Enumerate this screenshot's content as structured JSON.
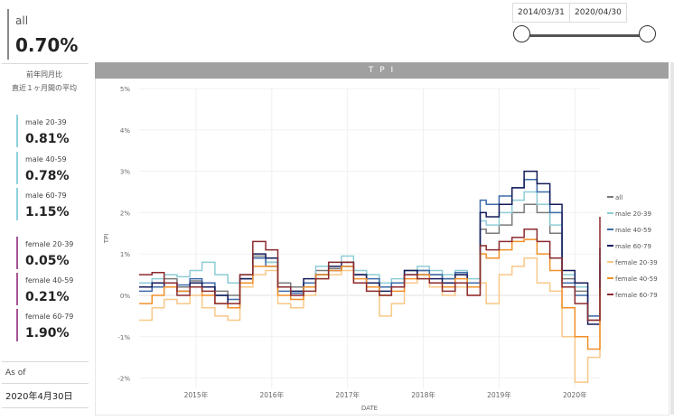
{
  "summary": {
    "label": "all",
    "value": "0.70%"
  },
  "notes": {
    "line1": "前年同月比",
    "line2": "直近１ヶ月間の平均"
  },
  "segments": [
    {
      "label": "male 20-39",
      "value": "0.81%",
      "group": "male"
    },
    {
      "label": "male 40-59",
      "value": "0.78%",
      "group": "male"
    },
    {
      "label": "male 60-79",
      "value": "1.15%",
      "group": "male"
    },
    {
      "label": "female 20-39",
      "value": "0.05%",
      "group": "female"
    },
    {
      "label": "female 40-59",
      "value": "0.21%",
      "group": "female"
    },
    {
      "label": "female 60-79",
      "value": "1.90%",
      "group": "female"
    }
  ],
  "as_of": {
    "label": "As of",
    "value": "2020年4月30日"
  },
  "date_range": {
    "start": "2014/03/31",
    "end": "2020/04/30"
  },
  "chart_header": "T P I",
  "chart_data": {
    "type": "line",
    "step": true,
    "xlabel": "DATE",
    "ylabel": "TPI",
    "ylim": [
      -2.25,
      5.0
    ],
    "yticks": [
      -2,
      -1,
      0,
      1,
      2,
      3,
      4,
      5
    ],
    "ytick_labels": [
      "-2%",
      "-1%",
      "0%",
      "1%",
      "2%",
      "3%",
      "4%",
      "5%"
    ],
    "xlim": [
      2014.25,
      2020.33
    ],
    "xticks": [
      2015,
      2016,
      2017,
      2018,
      2019,
      2020
    ],
    "xtick_labels": [
      "2015年",
      "2016年",
      "2017年",
      "2018年",
      "2019年",
      "2020年"
    ],
    "series": [
      {
        "name": "all",
        "color": "#7a7a7a",
        "x": [
          2014.25,
          2014.42,
          2014.58,
          2014.75,
          2014.92,
          2015.08,
          2015.25,
          2015.42,
          2015.58,
          2015.75,
          2015.92,
          2016.08,
          2016.25,
          2016.42,
          2016.58,
          2016.75,
          2016.92,
          2017.08,
          2017.25,
          2017.42,
          2017.58,
          2017.75,
          2017.92,
          2018.08,
          2018.25,
          2018.42,
          2018.58,
          2018.75,
          2018.83,
          2019.0,
          2019.17,
          2019.33,
          2019.5,
          2019.67,
          2019.83,
          2020.0,
          2020.17,
          2020.33
        ],
        "values": [
          0.2,
          0.3,
          0.4,
          0.2,
          0.35,
          0.2,
          0.1,
          0.0,
          0.5,
          0.95,
          0.8,
          0.3,
          0.2,
          0.3,
          0.6,
          0.65,
          0.7,
          0.5,
          0.3,
          0.2,
          0.3,
          0.6,
          0.6,
          0.5,
          0.4,
          0.5,
          0.3,
          1.6,
          1.5,
          1.7,
          2.0,
          2.2,
          2.0,
          1.5,
          0.4,
          0.1,
          -0.6,
          0.7
        ]
      },
      {
        "name": "male 20-39",
        "color": "#8ecdd6",
        "x": [
          2014.25,
          2014.42,
          2014.58,
          2014.75,
          2014.92,
          2015.08,
          2015.25,
          2015.42,
          2015.58,
          2015.75,
          2015.92,
          2016.08,
          2016.25,
          2016.42,
          2016.58,
          2016.75,
          2016.92,
          2017.08,
          2017.25,
          2017.42,
          2017.58,
          2017.75,
          2017.92,
          2018.08,
          2018.25,
          2018.42,
          2018.58,
          2018.75,
          2018.83,
          2019.0,
          2019.17,
          2019.33,
          2019.5,
          2019.67,
          2019.83,
          2020.0,
          2020.17,
          2020.33
        ],
        "values": [
          0.3,
          0.4,
          0.5,
          0.45,
          0.6,
          0.8,
          0.5,
          0.3,
          0.5,
          0.9,
          0.8,
          0.2,
          0.1,
          0.3,
          0.7,
          0.8,
          0.95,
          0.6,
          0.5,
          0.3,
          0.4,
          0.6,
          0.7,
          0.6,
          0.5,
          0.6,
          0.4,
          1.8,
          1.7,
          2.0,
          2.3,
          2.5,
          2.2,
          1.7,
          0.5,
          0.2,
          -0.5,
          0.8
        ]
      },
      {
        "name": "male 40-59",
        "color": "#3d6aa8",
        "x": [
          2014.25,
          2014.42,
          2014.58,
          2014.75,
          2014.92,
          2015.08,
          2015.25,
          2015.42,
          2015.58,
          2015.75,
          2015.92,
          2016.08,
          2016.25,
          2016.42,
          2016.58,
          2016.75,
          2016.92,
          2017.08,
          2017.25,
          2017.42,
          2017.58,
          2017.75,
          2017.92,
          2018.08,
          2018.25,
          2018.42,
          2018.58,
          2018.75,
          2018.83,
          2019.0,
          2019.17,
          2019.33,
          2019.5,
          2019.67,
          2019.83,
          2020.0,
          2020.17,
          2020.33
        ],
        "values": [
          0.1,
          0.2,
          0.3,
          0.25,
          0.4,
          0.3,
          0.0,
          -0.1,
          0.4,
          0.9,
          0.7,
          0.1,
          0.05,
          0.3,
          0.5,
          0.6,
          0.7,
          0.5,
          0.4,
          0.2,
          0.3,
          0.5,
          0.6,
          0.5,
          0.4,
          0.55,
          0.3,
          2.3,
          2.2,
          2.4,
          2.6,
          2.8,
          2.5,
          2.0,
          0.3,
          0.0,
          -0.5,
          0.8
        ]
      },
      {
        "name": "male 60-79",
        "color": "#141c5a",
        "x": [
          2014.25,
          2014.42,
          2014.58,
          2014.75,
          2014.92,
          2015.08,
          2015.25,
          2015.42,
          2015.58,
          2015.75,
          2015.92,
          2016.08,
          2016.25,
          2016.42,
          2016.58,
          2016.75,
          2016.92,
          2017.08,
          2017.25,
          2017.42,
          2017.58,
          2017.75,
          2017.92,
          2018.08,
          2018.25,
          2018.42,
          2018.58,
          2018.75,
          2018.83,
          2019.0,
          2019.17,
          2019.33,
          2019.5,
          2019.67,
          2019.83,
          2020.0,
          2020.17,
          2020.33
        ],
        "values": [
          0.2,
          0.3,
          0.2,
          0.1,
          0.3,
          0.2,
          0.0,
          -0.3,
          0.4,
          1.0,
          0.9,
          0.2,
          0.1,
          0.4,
          0.5,
          0.7,
          0.8,
          0.5,
          0.3,
          0.1,
          0.2,
          0.6,
          0.5,
          0.4,
          0.3,
          0.5,
          0.2,
          2.0,
          1.9,
          2.2,
          2.6,
          3.0,
          2.7,
          2.2,
          0.6,
          0.3,
          -0.7,
          1.15
        ]
      },
      {
        "name": "female 20-39",
        "color": "#f8c888",
        "x": [
          2014.25,
          2014.42,
          2014.58,
          2014.75,
          2014.92,
          2015.08,
          2015.25,
          2015.42,
          2015.58,
          2015.75,
          2015.92,
          2016.08,
          2016.25,
          2016.42,
          2016.58,
          2016.75,
          2016.92,
          2017.08,
          2017.25,
          2017.42,
          2017.58,
          2017.75,
          2017.92,
          2018.08,
          2018.25,
          2018.42,
          2018.58,
          2018.75,
          2018.83,
          2019.0,
          2019.17,
          2019.33,
          2019.5,
          2019.67,
          2019.83,
          2020.0,
          2020.17,
          2020.33
        ],
        "values": [
          -0.6,
          -0.3,
          -0.1,
          -0.2,
          0.0,
          -0.3,
          -0.5,
          -0.6,
          0.2,
          0.5,
          0.6,
          -0.2,
          -0.3,
          0.0,
          0.4,
          0.5,
          0.6,
          0.3,
          0.1,
          -0.5,
          -0.2,
          0.3,
          0.4,
          0.2,
          0.0,
          0.2,
          0.0,
          0.3,
          -0.2,
          0.5,
          0.7,
          0.9,
          0.3,
          0.1,
          -1.0,
          -2.1,
          -1.5,
          0.0
        ]
      },
      {
        "name": "female 40-59",
        "color": "#f0902a",
        "x": [
          2014.25,
          2014.42,
          2014.58,
          2014.75,
          2014.92,
          2015.08,
          2015.25,
          2015.42,
          2015.58,
          2015.75,
          2015.92,
          2016.08,
          2016.25,
          2016.42,
          2016.58,
          2016.75,
          2016.92,
          2017.08,
          2017.25,
          2017.42,
          2017.58,
          2017.75,
          2017.92,
          2018.08,
          2018.25,
          2018.42,
          2018.58,
          2018.75,
          2018.83,
          2019.0,
          2019.17,
          2019.33,
          2019.5,
          2019.67,
          2019.83,
          2020.0,
          2020.17,
          2020.33
        ],
        "values": [
          -0.2,
          0.0,
          0.2,
          0.1,
          0.2,
          0.0,
          -0.2,
          -0.3,
          0.3,
          0.7,
          0.7,
          0.0,
          -0.1,
          0.2,
          0.5,
          0.6,
          0.7,
          0.4,
          0.2,
          0.0,
          0.1,
          0.4,
          0.5,
          0.3,
          0.2,
          0.4,
          0.2,
          1.0,
          0.9,
          1.1,
          1.3,
          1.35,
          1.0,
          0.6,
          -0.3,
          -1.0,
          -1.3,
          0.2
        ]
      },
      {
        "name": "female 60-79",
        "color": "#8b2a2e",
        "x": [
          2014.25,
          2014.42,
          2014.58,
          2014.75,
          2014.92,
          2015.08,
          2015.25,
          2015.42,
          2015.58,
          2015.75,
          2015.92,
          2016.08,
          2016.25,
          2016.42,
          2016.58,
          2016.75,
          2016.92,
          2017.08,
          2017.25,
          2017.42,
          2017.58,
          2017.75,
          2017.92,
          2018.08,
          2018.25,
          2018.42,
          2018.58,
          2018.75,
          2018.83,
          2019.0,
          2019.17,
          2019.33,
          2019.5,
          2019.67,
          2019.83,
          2020.0,
          2020.17,
          2020.33
        ],
        "values": [
          0.5,
          0.55,
          0.3,
          0.0,
          0.2,
          0.1,
          -0.2,
          -0.2,
          0.5,
          1.3,
          1.1,
          0.2,
          0.0,
          0.1,
          0.4,
          0.8,
          0.8,
          0.3,
          0.1,
          0.0,
          0.2,
          0.5,
          0.4,
          0.3,
          0.1,
          0.3,
          0.0,
          1.2,
          1.1,
          1.3,
          1.4,
          1.6,
          1.3,
          0.9,
          0.2,
          -0.2,
          -0.6,
          1.9
        ]
      }
    ]
  }
}
